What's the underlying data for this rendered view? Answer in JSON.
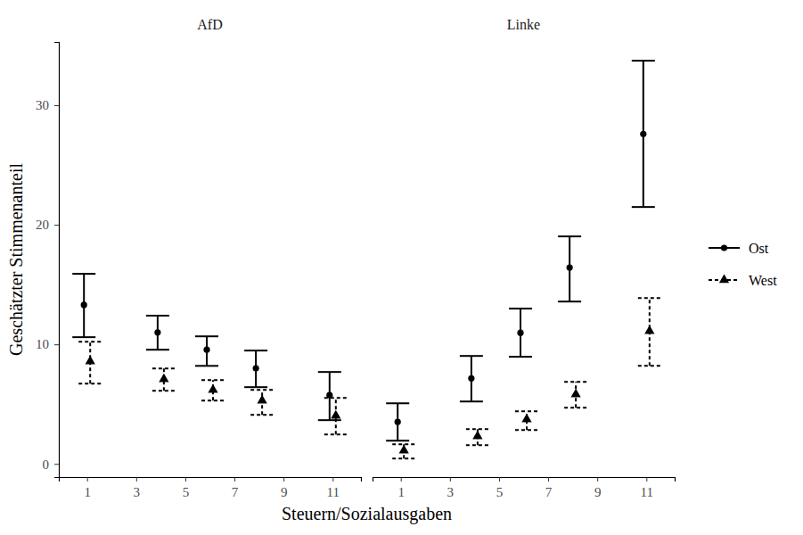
{
  "chart_data": {
    "type": "errorbar",
    "x_label": "Steuern/Sozialausgaben",
    "y_label": "Geschätzter Stimmenanteil",
    "xlim": [
      -0.15,
      12.15
    ],
    "xticks": [
      1,
      3,
      5,
      7,
      9,
      11
    ],
    "ylim": [
      -1.1,
      35.3
    ],
    "yticks": [
      0,
      10,
      20,
      30
    ],
    "legend": "right",
    "panels": [
      {
        "title": "AfD",
        "series": [
          {
            "name": "Ost",
            "color": "#000000",
            "marker": "circle",
            "line_style": "solid",
            "x": [
              1,
              4,
              6,
              8,
              11
            ],
            "values": [
              13.3,
              11.0,
              9.55,
              8.0,
              5.75
            ],
            "lower": [
              10.6,
              9.55,
              8.2,
              6.42,
              3.66
            ],
            "upper": [
              15.9,
              12.4,
              10.67,
              9.48,
              7.69
            ]
          },
          {
            "name": "West",
            "color": "#000000",
            "marker": "triangle",
            "line_style": "dashed",
            "x": [
              1,
              4,
              6,
              8,
              11
            ],
            "values": [
              8.58,
              7.09,
              6.19,
              5.3,
              4.03
            ],
            "lower": [
              6.72,
              6.12,
              5.3,
              4.1,
              2.46
            ],
            "upper": [
              10.22,
              7.99,
              7.01,
              6.19,
              5.52
            ]
          }
        ]
      },
      {
        "title": "Linke",
        "series": [
          {
            "name": "Ost",
            "color": "#000000",
            "marker": "circle",
            "line_style": "solid",
            "x": [
              1,
              4,
              6,
              8,
              11
            ],
            "values": [
              3.51,
              7.16,
              10.97,
              16.42,
              27.6
            ],
            "lower": [
              1.94,
              5.22,
              8.96,
              13.58,
              21.49
            ],
            "upper": [
              5.07,
              9.03,
              12.99,
              19.03,
              33.73
            ]
          },
          {
            "name": "West",
            "color": "#000000",
            "marker": "triangle",
            "line_style": "dashed",
            "x": [
              1,
              4,
              6,
              8,
              11
            ],
            "values": [
              1.12,
              2.31,
              3.73,
              5.82,
              11.12
            ],
            "lower": [
              0.45,
              1.57,
              2.84,
              4.7,
              8.21
            ],
            "upper": [
              1.64,
              2.91,
              4.4,
              6.87,
              13.88
            ]
          }
        ]
      }
    ]
  }
}
